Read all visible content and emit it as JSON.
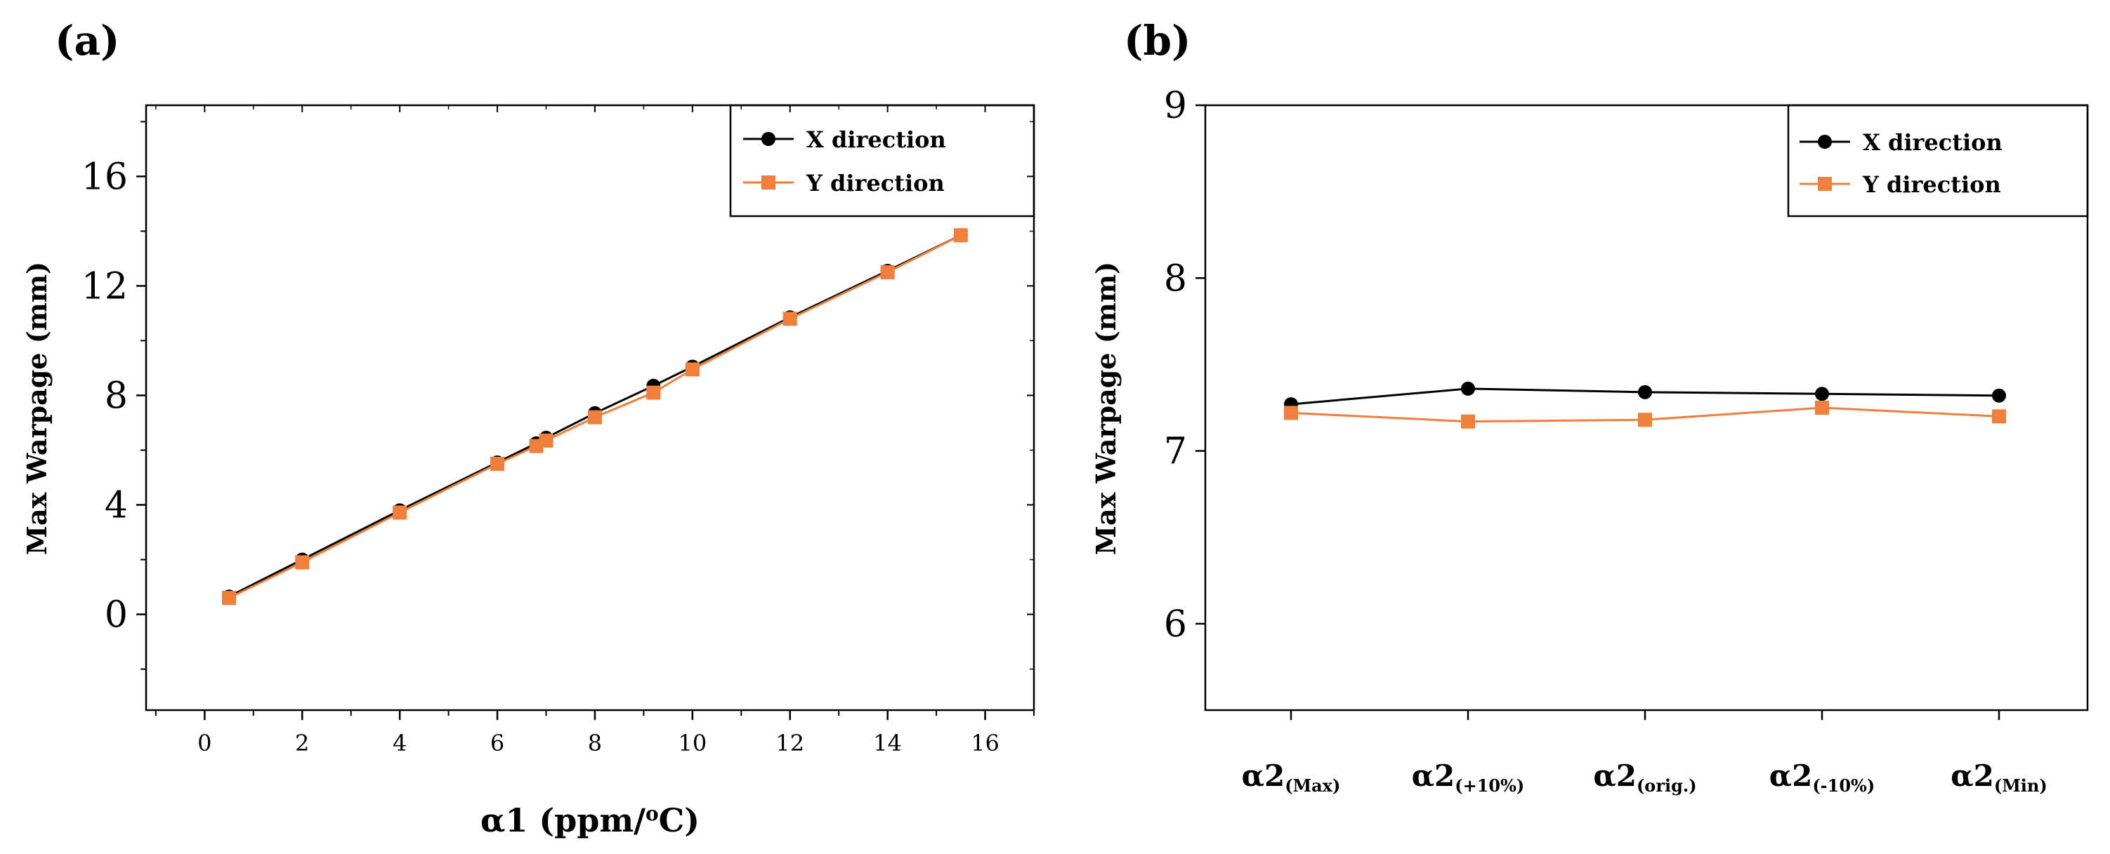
{
  "chart_data": [
    {
      "panel": "(a)",
      "type": "line",
      "xlabel": "α1 (ppm/",
      "xlabel_sup": "o",
      "xlabel_tail": "C)",
      "ylabel": "Max Warpage (mm)",
      "xlim": [
        -1.2,
        17
      ],
      "ylim": [
        -3.5,
        18.6
      ],
      "xticks": [
        0,
        2,
        4,
        6,
        8,
        10,
        12,
        14,
        16
      ],
      "yticks": [
        0,
        4,
        8,
        12,
        16
      ],
      "legend": "top-right",
      "series": [
        {
          "name": "X direction",
          "color": "#000000",
          "marker": "circle",
          "x": [
            0.5,
            2,
            4,
            6,
            6.8,
            7,
            8,
            9.2,
            10,
            12,
            14,
            15.5
          ],
          "y": [
            0.65,
            2.0,
            3.8,
            5.55,
            6.25,
            6.45,
            7.35,
            8.35,
            9.05,
            10.85,
            12.55,
            13.85
          ]
        },
        {
          "name": "Y direction",
          "color": "#f07f3c",
          "marker": "square",
          "x": [
            0.5,
            2,
            4,
            6,
            6.8,
            7,
            8,
            9.2,
            10,
            12,
            14,
            15.5
          ],
          "y": [
            0.6,
            1.9,
            3.72,
            5.5,
            6.15,
            6.35,
            7.2,
            8.1,
            8.95,
            10.8,
            12.5,
            13.85
          ]
        }
      ]
    },
    {
      "panel": "(b)",
      "type": "line",
      "xlabel": "",
      "ylabel": "Max Warpage (mm)",
      "ylim": [
        5.5,
        9
      ],
      "yticks": [
        6,
        7,
        8,
        9
      ],
      "categories": [
        {
          "main": "α2",
          "sub": "(Max)"
        },
        {
          "main": "α2",
          "sub": "(+10%)"
        },
        {
          "main": "α2",
          "sub": "(orig.)"
        },
        {
          "main": "α2",
          "sub": "(-10%)"
        },
        {
          "main": "α2",
          "sub": "(Min)"
        }
      ],
      "legend": "top-right",
      "series": [
        {
          "name": "X direction",
          "color": "#000000",
          "marker": "circle",
          "values": [
            7.27,
            7.36,
            7.34,
            7.33,
            7.32
          ]
        },
        {
          "name": "Y direction",
          "color": "#f07f3c",
          "marker": "square",
          "values": [
            7.22,
            7.17,
            7.18,
            7.25,
            7.2
          ]
        }
      ]
    }
  ]
}
